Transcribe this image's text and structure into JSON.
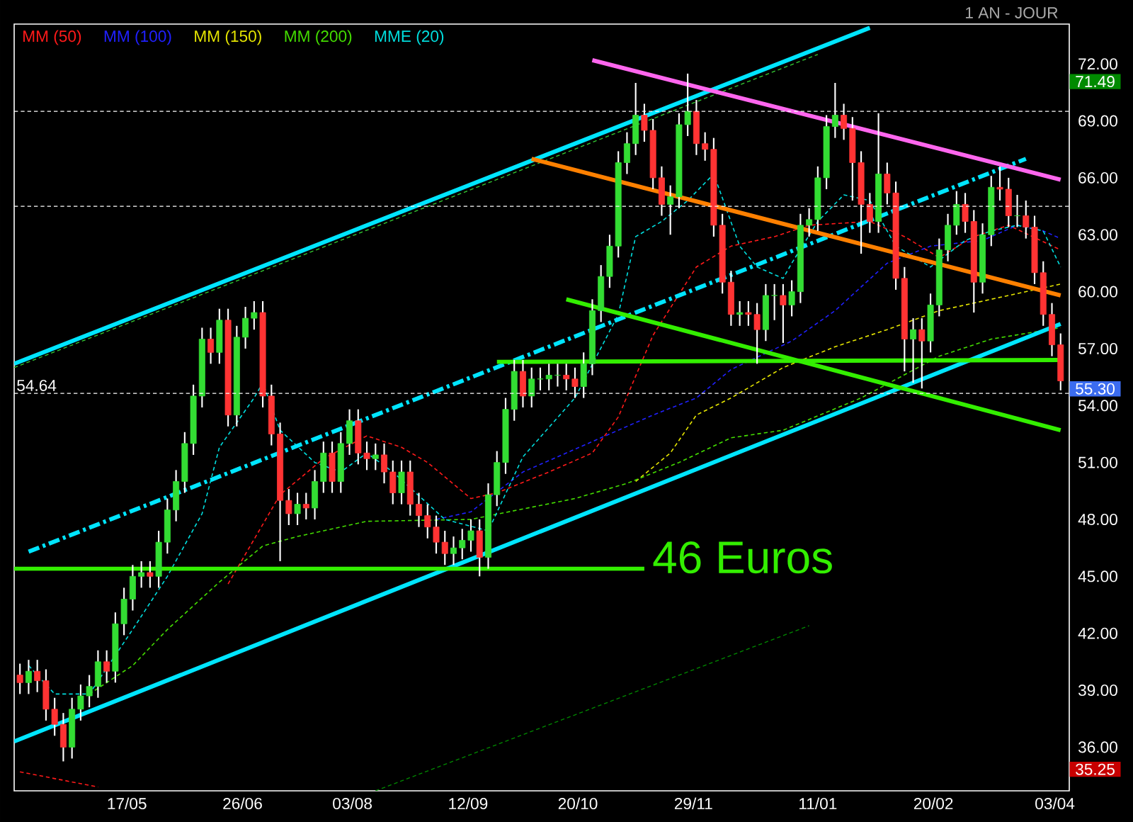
{
  "chart_data": {
    "type": "candlestick",
    "subtitle": "1 AN - JOUR",
    "x": [
      "2010-04-10",
      "2010-04-13",
      "2010-04-16",
      "2010-04-19",
      "2010-04-22",
      "2010-04-25",
      "2010-04-28",
      "2010-05-01",
      "2010-05-04",
      "2010-05-07",
      "2010-05-10",
      "2010-05-13",
      "2010-05-16",
      "2010-05-19",
      "2010-05-22",
      "2010-05-25",
      "2010-05-28",
      "2010-05-31",
      "2010-06-03",
      "2010-06-06",
      "2010-06-09",
      "2010-06-12",
      "2010-06-15",
      "2010-06-18",
      "2010-06-21",
      "2010-06-24",
      "2010-06-27",
      "2010-06-30",
      "2010-07-03",
      "2010-07-06",
      "2010-07-09",
      "2010-07-12",
      "2010-07-15",
      "2010-07-18",
      "2010-07-21",
      "2010-07-24",
      "2010-07-27",
      "2010-07-30",
      "2010-08-02",
      "2010-08-05",
      "2010-08-08",
      "2010-08-11",
      "2010-08-14",
      "2010-08-17",
      "2010-08-20",
      "2010-08-23",
      "2010-08-26",
      "2010-08-29",
      "2010-09-01",
      "2010-09-04",
      "2010-09-07",
      "2010-09-10",
      "2010-09-13",
      "2010-09-16",
      "2010-09-19",
      "2010-09-22",
      "2010-09-25",
      "2010-09-28",
      "2010-10-01",
      "2010-10-04",
      "2010-10-07",
      "2010-10-10",
      "2010-10-13",
      "2010-10-16",
      "2010-10-19",
      "2010-10-22",
      "2010-10-25",
      "2010-10-28",
      "2010-10-31",
      "2010-11-03",
      "2010-11-06",
      "2010-11-09",
      "2010-11-12",
      "2010-11-15",
      "2010-11-18",
      "2010-11-21",
      "2010-11-24",
      "2010-11-27",
      "2010-11-30",
      "2010-12-03",
      "2010-12-06",
      "2010-12-09",
      "2010-12-12",
      "2010-12-15",
      "2010-12-18",
      "2010-12-21",
      "2010-12-24",
      "2010-12-27",
      "2010-12-30",
      "2011-01-02",
      "2011-01-05",
      "2011-01-08",
      "2011-01-11",
      "2011-01-14",
      "2011-01-17",
      "2011-01-20",
      "2011-01-23",
      "2011-01-26",
      "2011-01-29",
      "2011-02-01",
      "2011-02-04",
      "2011-02-07",
      "2011-02-10",
      "2011-02-13",
      "2011-02-16",
      "2011-02-19",
      "2011-02-22",
      "2011-02-25",
      "2011-02-28",
      "2011-03-03",
      "2011-03-06",
      "2011-03-09",
      "2011-03-12",
      "2011-03-15",
      "2011-03-18",
      "2011-03-21",
      "2011-03-24",
      "2011-03-27",
      "2011-03-30",
      "2011-04-02",
      "2011-04-05"
    ],
    "ohlc": [
      [
        39.8,
        40.4,
        38.8,
        39.4
      ],
      [
        39.4,
        40.6,
        38.8,
        40.0
      ],
      [
        40.0,
        40.6,
        38.9,
        39.5
      ],
      [
        39.5,
        40.1,
        37.4,
        38.0
      ],
      [
        38.0,
        38.6,
        36.6,
        37.2
      ],
      [
        37.2,
        37.8,
        35.25,
        36.0
      ],
      [
        36.0,
        38.6,
        35.4,
        38.0
      ],
      [
        38.0,
        39.3,
        37.4,
        38.7
      ],
      [
        38.7,
        39.8,
        38.1,
        39.2
      ],
      [
        39.2,
        41.1,
        38.6,
        40.5
      ],
      [
        40.5,
        41.1,
        39.4,
        40.0
      ],
      [
        40.0,
        43.1,
        39.4,
        42.5
      ],
      [
        42.5,
        44.4,
        41.9,
        43.8
      ],
      [
        43.8,
        45.6,
        43.2,
        45.0
      ],
      [
        45.0,
        45.8,
        44.4,
        45.2
      ],
      [
        45.2,
        45.8,
        44.4,
        45.0
      ],
      [
        45.0,
        47.4,
        44.4,
        46.8
      ],
      [
        46.8,
        49.1,
        46.2,
        48.5
      ],
      [
        48.5,
        50.6,
        47.9,
        50.0
      ],
      [
        50.0,
        52.6,
        49.4,
        52.0
      ],
      [
        52.0,
        55.1,
        51.4,
        54.5
      ],
      [
        54.5,
        58.1,
        53.9,
        57.5
      ],
      [
        57.5,
        58.1,
        56.2,
        56.8
      ],
      [
        56.8,
        59.1,
        56.2,
        58.5
      ],
      [
        58.5,
        59.1,
        52.9,
        53.5
      ],
      [
        53.5,
        58.2,
        52.9,
        57.6
      ],
      [
        57.6,
        59.2,
        57.0,
        58.6
      ],
      [
        58.6,
        59.5,
        58.0,
        58.9
      ],
      [
        58.9,
        59.5,
        53.9,
        54.5
      ],
      [
        54.5,
        55.1,
        51.9,
        52.5
      ],
      [
        52.5,
        53.1,
        45.8,
        49.0
      ],
      [
        49.0,
        49.6,
        47.7,
        48.3
      ],
      [
        48.3,
        49.4,
        47.7,
        48.8
      ],
      [
        48.8,
        49.4,
        48.0,
        48.6
      ],
      [
        48.6,
        50.6,
        48.0,
        50.0
      ],
      [
        50.0,
        52.1,
        49.4,
        51.5
      ],
      [
        51.5,
        52.1,
        49.4,
        50.0
      ],
      [
        50.0,
        52.6,
        49.4,
        52.0
      ],
      [
        52.0,
        53.8,
        51.4,
        53.2
      ],
      [
        53.2,
        53.8,
        50.9,
        51.5
      ],
      [
        51.5,
        52.1,
        50.6,
        51.2
      ],
      [
        51.2,
        52.0,
        50.6,
        51.4
      ],
      [
        51.4,
        52.0,
        49.9,
        50.5
      ],
      [
        50.5,
        51.1,
        48.8,
        49.4
      ],
      [
        49.4,
        51.1,
        48.8,
        50.5
      ],
      [
        50.5,
        51.1,
        48.2,
        48.8
      ],
      [
        48.8,
        49.4,
        47.6,
        48.2
      ],
      [
        48.2,
        48.8,
        47.0,
        47.6
      ],
      [
        47.6,
        48.2,
        46.2,
        46.8
      ],
      [
        46.8,
        47.4,
        45.6,
        46.2
      ],
      [
        46.2,
        47.1,
        45.6,
        46.5
      ],
      [
        46.5,
        47.5,
        45.9,
        46.9
      ],
      [
        46.9,
        48.0,
        46.3,
        47.4
      ],
      [
        47.4,
        48.0,
        45.0,
        46.0
      ],
      [
        46.0,
        49.9,
        45.4,
        49.3
      ],
      [
        49.3,
        51.6,
        48.7,
        51.0
      ],
      [
        51.0,
        54.4,
        50.4,
        53.8
      ],
      [
        53.8,
        56.4,
        53.2,
        55.8
      ],
      [
        55.8,
        56.4,
        53.9,
        54.5
      ],
      [
        54.5,
        56.0,
        53.9,
        55.4
      ],
      [
        55.4,
        56.0,
        54.8,
        55.4
      ],
      [
        55.4,
        56.2,
        54.8,
        55.6
      ],
      [
        55.6,
        56.2,
        55.0,
        55.6
      ],
      [
        55.6,
        56.2,
        54.8,
        55.4
      ],
      [
        55.4,
        56.0,
        54.4,
        55.0
      ],
      [
        55.0,
        56.8,
        54.4,
        56.2
      ],
      [
        56.2,
        59.6,
        55.6,
        59.0
      ],
      [
        59.0,
        61.4,
        58.4,
        60.8
      ],
      [
        60.8,
        63.0,
        60.2,
        62.4
      ],
      [
        62.4,
        67.4,
        61.8,
        66.8
      ],
      [
        66.8,
        68.4,
        66.2,
        67.8
      ],
      [
        67.8,
        71.0,
        67.2,
        69.3
      ],
      [
        69.3,
        69.9,
        67.9,
        68.5
      ],
      [
        68.5,
        69.1,
        65.4,
        66.0
      ],
      [
        66.0,
        66.6,
        64.0,
        64.6
      ],
      [
        64.6,
        65.6,
        63.0,
        65.0
      ],
      [
        65.0,
        69.4,
        64.4,
        68.8
      ],
      [
        68.8,
        71.49,
        68.2,
        69.5
      ],
      [
        69.5,
        70.1,
        67.2,
        67.8
      ],
      [
        67.8,
        68.4,
        66.9,
        67.5
      ],
      [
        67.5,
        68.1,
        62.9,
        63.5
      ],
      [
        63.5,
        64.1,
        59.9,
        60.5
      ],
      [
        60.5,
        61.1,
        58.2,
        58.8
      ],
      [
        58.8,
        59.5,
        58.2,
        58.9
      ],
      [
        58.9,
        59.5,
        58.2,
        58.8
      ],
      [
        58.8,
        59.4,
        56.2,
        58.0
      ],
      [
        58.0,
        60.4,
        57.4,
        59.8
      ],
      [
        59.8,
        60.4,
        58.5,
        59.8
      ],
      [
        59.8,
        60.4,
        57.3,
        59.3
      ],
      [
        59.3,
        60.6,
        58.7,
        60.0
      ],
      [
        60.0,
        64.1,
        59.4,
        63.5
      ],
      [
        63.5,
        64.4,
        62.9,
        63.8
      ],
      [
        63.8,
        66.6,
        63.2,
        66.0
      ],
      [
        66.0,
        69.3,
        65.4,
        68.7
      ],
      [
        68.7,
        71.0,
        68.1,
        69.3
      ],
      [
        69.3,
        69.9,
        68.0,
        68.6
      ],
      [
        68.6,
        69.2,
        64.8,
        66.8
      ],
      [
        66.8,
        67.4,
        62.0,
        64.6
      ],
      [
        64.6,
        65.2,
        63.1,
        63.7
      ],
      [
        63.7,
        69.4,
        63.1,
        66.2
      ],
      [
        66.2,
        66.8,
        64.6,
        65.2
      ],
      [
        65.2,
        65.8,
        60.1,
        60.7
      ],
      [
        60.7,
        61.3,
        55.8,
        57.5
      ],
      [
        57.5,
        58.6,
        55.2,
        58.0
      ],
      [
        58.0,
        58.6,
        54.9,
        57.4
      ],
      [
        57.4,
        59.9,
        56.8,
        59.3
      ],
      [
        59.3,
        62.8,
        58.7,
        62.2
      ],
      [
        62.2,
        64.1,
        61.6,
        63.5
      ],
      [
        63.5,
        65.3,
        63.0,
        64.6
      ],
      [
        64.6,
        65.2,
        63.1,
        63.7
      ],
      [
        63.7,
        64.3,
        58.9,
        60.5
      ],
      [
        60.5,
        63.6,
        59.9,
        63.0
      ],
      [
        63.0,
        66.1,
        62.4,
        65.5
      ],
      [
        65.5,
        66.6,
        64.8,
        65.4
      ],
      [
        65.4,
        66.0,
        63.4,
        64.0
      ],
      [
        64.0,
        65.1,
        63.4,
        64.0
      ],
      [
        64.0,
        64.8,
        62.8,
        63.4
      ],
      [
        63.4,
        64.0,
        60.4,
        61.0
      ],
      [
        61.0,
        61.6,
        58.2,
        58.8
      ],
      [
        58.8,
        59.4,
        56.6,
        57.2
      ],
      [
        57.2,
        57.8,
        54.8,
        55.3
      ]
    ],
    "series": [
      {
        "name": "MM (50)",
        "type": "line",
        "color": "#ff1a1a",
        "line_style": "dashed",
        "x": [
          "2010-04-10",
          "2010-05-07",
          "2010-05-25",
          "2010-06-21",
          "2010-07-09",
          "2010-07-24",
          "2010-08-08",
          "2010-08-20",
          "2010-08-29",
          "2010-09-13",
          "2010-09-22",
          "2010-10-10",
          "2010-10-25",
          "2010-11-03",
          "2010-11-15",
          "2010-11-30",
          "2010-12-12",
          "2010-12-27",
          "2011-01-08",
          "2011-01-29",
          "2011-02-10",
          "2011-02-22",
          "2011-03-06",
          "2011-03-18",
          "2011-04-05"
        ],
        "values": [
          34.7,
          33.9,
          null,
          44.6,
          49.3,
          51.2,
          52.4,
          51.8,
          51.0,
          49.1,
          49.4,
          50.5,
          51.5,
          53.4,
          57.7,
          61.3,
          62.4,
          62.9,
          63.5,
          63.7,
          62.9,
          61.8,
          62.9,
          63.5,
          62.2
        ]
      },
      {
        "name": "MM (100)",
        "type": "line",
        "color": "#2020ff",
        "line_style": "dashed",
        "x": [
          "2010-09-01",
          "2010-09-13",
          "2010-10-01",
          "2010-10-25",
          "2010-11-15",
          "2010-11-30",
          "2010-12-12",
          "2011-01-02",
          "2011-01-17",
          "2011-02-04",
          "2011-02-19",
          "2011-03-09",
          "2011-03-21",
          "2011-03-30",
          "2011-04-05"
        ],
        "values": [
          48.0,
          48.4,
          50.5,
          52.1,
          53.5,
          54.4,
          55.9,
          57.4,
          59.0,
          61.5,
          62.4,
          62.7,
          63.5,
          63.2,
          62.8
        ]
      },
      {
        "name": "MM (150)",
        "type": "line",
        "color": "#e6e600",
        "line_style": "dashed",
        "x": [
          "2010-11-09",
          "2010-11-21",
          "2010-11-30",
          "2010-12-12",
          "2010-12-30",
          "2011-01-17",
          "2011-02-04",
          "2011-02-22",
          "2011-03-12",
          "2011-04-05"
        ],
        "values": [
          50.0,
          51.5,
          53.5,
          54.4,
          56.0,
          57.1,
          58.0,
          59.0,
          59.6,
          60.4
        ]
      },
      {
        "name": "MM (200)",
        "type": "line",
        "color": "#44dd00",
        "line_style": "dashed",
        "x": [
          "2010-05-04",
          "2010-05-19",
          "2010-05-31",
          "2010-06-18",
          "2010-07-03",
          "2010-07-15",
          "2010-08-08",
          "2010-09-13",
          "2010-10-19",
          "2010-11-06",
          "2010-11-24",
          "2010-12-12",
          "2010-12-30",
          "2011-01-26",
          "2011-02-22",
          "2011-03-12",
          "2011-04-05"
        ],
        "values": [
          38.8,
          40.3,
          42.2,
          44.7,
          46.6,
          47.1,
          47.9,
          48.0,
          49.1,
          49.9,
          51.0,
          52.3,
          52.7,
          54.4,
          56.6,
          57.5,
          58.1
        ]
      },
      {
        "name": "MME (20)",
        "type": "line",
        "color": "#00dede",
        "line_style": "dashed",
        "x": [
          "2010-04-13",
          "2010-04-22",
          "2010-05-04",
          "2010-05-19",
          "2010-05-31",
          "2010-06-12",
          "2010-06-18",
          "2010-06-30",
          "2010-07-03",
          "2010-07-09",
          "2010-07-21",
          "2010-07-30",
          "2010-08-08",
          "2010-08-17",
          "2010-09-04",
          "2010-09-19",
          "2010-10-01",
          "2010-10-19",
          "2010-11-03",
          "2010-11-09",
          "2010-11-18",
          "2010-11-27",
          "2010-12-06",
          "2010-12-15",
          "2010-12-21",
          "2010-12-30",
          "2011-01-02",
          "2011-01-11",
          "2011-01-20",
          "2011-01-29",
          "2011-02-07",
          "2011-02-19",
          "2011-03-03",
          "2011-03-12",
          "2011-03-21",
          "2011-03-30",
          "2011-04-05"
        ],
        "values": [
          40.3,
          38.8,
          38.8,
          42.2,
          45.0,
          48.3,
          51.8,
          54.4,
          55.2,
          52.7,
          51.0,
          50.5,
          51.5,
          50.5,
          48.0,
          47.4,
          51.3,
          54.4,
          58.8,
          62.9,
          63.7,
          64.8,
          66.2,
          62.4,
          61.3,
          60.7,
          61.5,
          63.7,
          65.1,
          64.8,
          62.4,
          61.3,
          62.7,
          63.2,
          63.5,
          63.2,
          61.3
        ]
      },
      {
        "type": "line",
        "color": "#00e5ff",
        "line_style": "solid",
        "x": [
          "2010-04-08",
          "2011-01-29"
        ],
        "values": [
          56.2,
          73.9
        ]
      },
      {
        "type": "line",
        "color": "#33cc33",
        "line_style": "dashed",
        "x": [
          "2010-04-08",
          "2011-01-11"
        ],
        "values": [
          56.0,
          72.5
        ]
      },
      {
        "type": "line",
        "color": "#008800",
        "line_style": "dashed",
        "x": [
          "2010-08-11",
          "2011-01-08"
        ],
        "values": [
          33.7,
          42.4
        ]
      },
      {
        "type": "line",
        "color": "#00e5ff",
        "line_style": "solid",
        "x": [
          "2010-04-08",
          "2011-04-05"
        ],
        "values": [
          36.3,
          58.3
        ]
      },
      {
        "type": "line",
        "color": "#00e5ff",
        "line_style": "dashdot",
        "x": [
          "2010-04-13",
          "2011-03-24"
        ],
        "values": [
          46.3,
          67.0
        ]
      },
      {
        "type": "line",
        "color": "#ff66ee",
        "line_style": "solid",
        "x": [
          "2010-10-25",
          "2011-04-05"
        ],
        "values": [
          72.2,
          65.9
        ]
      },
      {
        "type": "line",
        "color": "#ff8000",
        "line_style": "solid",
        "x": [
          "2010-10-04",
          "2011-04-05"
        ],
        "values": [
          67.0,
          59.8
        ]
      },
      {
        "type": "line",
        "color": "#33ee00",
        "line_style": "solid",
        "x": [
          "2010-10-16",
          "2011-04-05"
        ],
        "values": [
          59.6,
          52.7
        ]
      },
      {
        "type": "line",
        "color": "#33ee00",
        "line_style": "solid",
        "x": [
          "2010-09-22",
          "2011-04-05"
        ],
        "values": [
          56.3,
          56.4
        ]
      },
      {
        "type": "line",
        "color": "#33ee00",
        "line_style": "solid",
        "x": [
          "2010-04-08",
          "2010-11-12"
        ],
        "values": [
          45.4,
          45.4
        ]
      }
    ],
    "xlim": [
      "2010-04-08",
      "2011-04-08"
    ],
    "xticks": [
      {
        "value": "2010-05-17",
        "label": "17/05"
      },
      {
        "value": "2010-06-26",
        "label": "26/06"
      },
      {
        "value": "2010-08-03",
        "label": "03/08"
      },
      {
        "value": "2010-09-12",
        "label": "12/09"
      },
      {
        "value": "2010-10-20",
        "label": "20/10"
      },
      {
        "value": "2010-11-29",
        "label": "29/11"
      },
      {
        "value": "2011-01-11",
        "label": "11/01"
      },
      {
        "value": "2011-02-20",
        "label": "20/02"
      },
      {
        "value": "2011-04-03",
        "label": "03/04"
      }
    ],
    "ylim": [
      33.7,
      74.1
    ],
    "yticks": [
      {
        "value": 36,
        "label": "36.00"
      },
      {
        "value": 39,
        "label": "39.00"
      },
      {
        "value": 42,
        "label": "42.00"
      },
      {
        "value": 45,
        "label": "45.00"
      },
      {
        "value": 48,
        "label": "48.00"
      },
      {
        "value": 51,
        "label": "51.00"
      },
      {
        "value": 54,
        "label": "54.00"
      },
      {
        "value": 57,
        "label": "57.00"
      },
      {
        "value": 60,
        "label": "60.00"
      },
      {
        "value": 63,
        "label": "63.00"
      },
      {
        "value": 66,
        "label": "66.00"
      },
      {
        "value": 69,
        "label": "69.00"
      },
      {
        "value": 72,
        "label": "72.00"
      }
    ],
    "ref_lines": [
      {
        "axis": "y",
        "value": 69.5,
        "color": "#ffffff",
        "line_style": "dashed"
      },
      {
        "axis": "y",
        "value": 64.5,
        "color": "#ffffff",
        "line_style": "dashed"
      },
      {
        "axis": "y",
        "value": 54.64,
        "label": "54.64",
        "color": "#ffffff",
        "line_style": "dashed"
      }
    ],
    "annotations": [
      {
        "text": "46 Euros",
        "x": "2010-11-12",
        "y": 45.4
      },
      "71.49",
      {
        "text": "55.30",
        "x": "2011-04-05",
        "y": 55.3
      },
      "35.25"
    ],
    "legend": "top left"
  }
}
